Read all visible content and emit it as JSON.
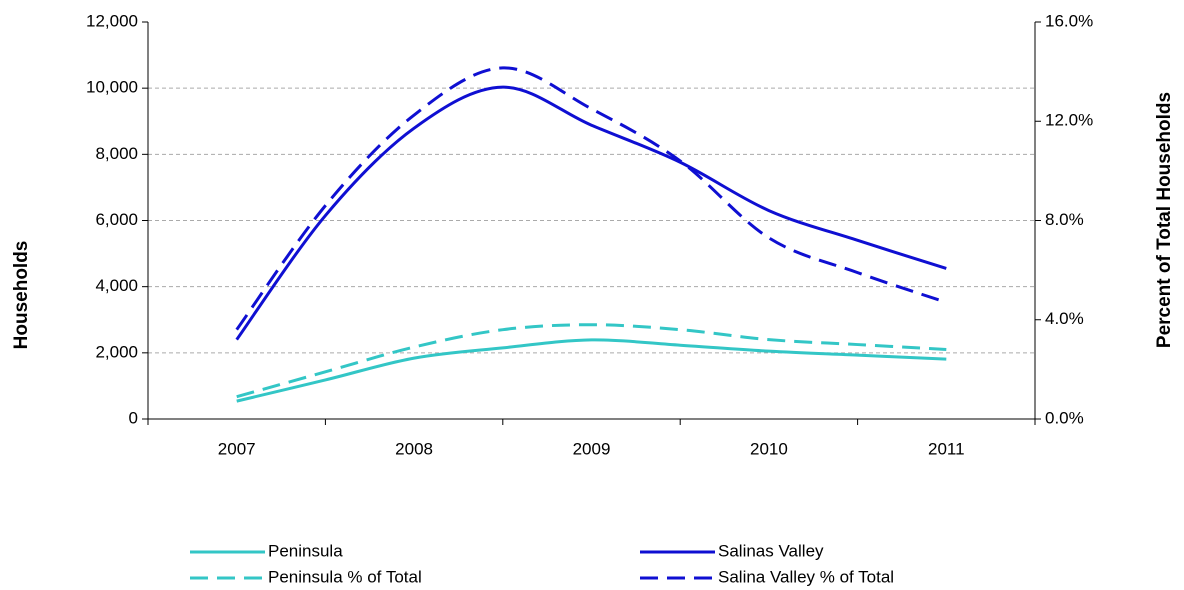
{
  "chart_data": {
    "type": "line",
    "categories": [
      "2007",
      null,
      "2008",
      null,
      "2009",
      null,
      "2010",
      null,
      "2011"
    ],
    "y_label": "Households",
    "y2_label": "Percent of Total Households",
    "ylim": [
      0,
      12000
    ],
    "yticks": [
      0,
      {
        "value": 2000,
        "label": "2,000"
      },
      {
        "value": 4000,
        "label": "4,000"
      },
      {
        "value": 6000,
        "label": "6,000"
      },
      {
        "value": 8000,
        "label": "8,000"
      },
      {
        "value": 10000,
        "label": "10,000"
      },
      {
        "value": 12000,
        "label": "12,000"
      }
    ],
    "y2lim": [
      0,
      16
    ],
    "y2ticks": [
      {
        "value": 0,
        "label": "0.0%"
      },
      {
        "value": 4,
        "label": "4.0%"
      },
      {
        "value": 8,
        "label": "8.0%"
      },
      {
        "value": 12,
        "label": "12.0%"
      },
      {
        "value": 16,
        "label": "16.0%"
      }
    ],
    "grid": true,
    "legend": "bottom",
    "series": [
      {
        "name": "Peninsula",
        "color": "#33c6c6",
        "dashed": false,
        "values": [
          540,
          1180,
          1840,
          2150,
          2390,
          2230,
          2050,
          1930,
          1810
        ]
      },
      {
        "name": "Salinas Valley",
        "color": "#0f0fd2",
        "dashed": false,
        "values": [
          2400,
          6150,
          8790,
          10030,
          8880,
          7760,
          6300,
          5400,
          4550
        ]
      },
      {
        "name": "Peninsula % of Total",
        "color": "#33c6c6",
        "dashed": true,
        "axis": "y2",
        "values": [
          0.9,
          1.9,
          2.9,
          3.6,
          3.8,
          3.6,
          3.2,
          3.0,
          2.8
        ]
      },
      {
        "name": "Salina Valley % of Total",
        "color": "#0f0fd2",
        "dashed": true,
        "axis": "y2",
        "values": [
          3.6,
          8.6,
          12.25,
          14.15,
          12.5,
          10.4,
          7.3,
          5.9,
          4.7
        ]
      }
    ]
  }
}
